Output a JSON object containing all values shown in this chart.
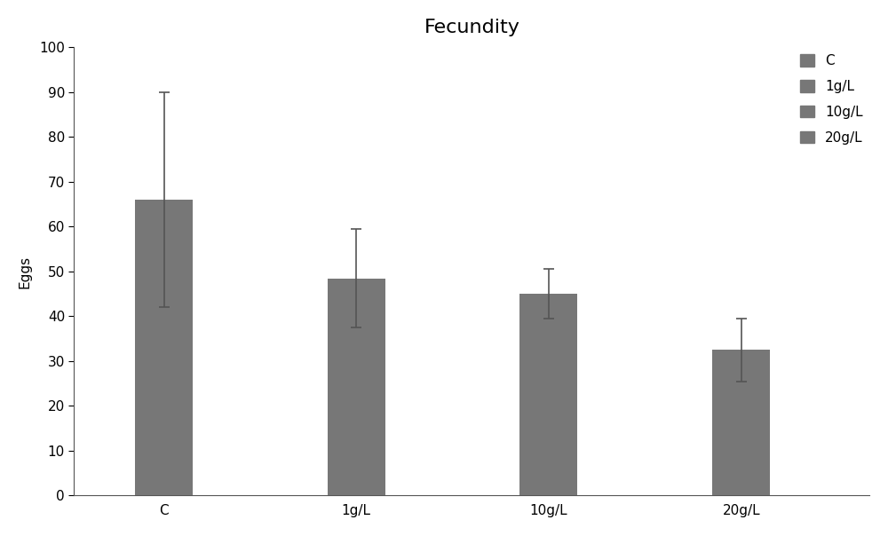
{
  "title": "Fecundity",
  "categories": [
    "C",
    "1g/L",
    "10g/L",
    "20g/L"
  ],
  "values": [
    66,
    48.5,
    45,
    32.5
  ],
  "errors": [
    24,
    11,
    5.5,
    7
  ],
  "bar_color": "#777777",
  "ylabel": "Eggs",
  "ylim": [
    0,
    100
  ],
  "yticks": [
    0,
    10,
    20,
    30,
    40,
    50,
    60,
    70,
    80,
    90,
    100
  ],
  "legend_labels": [
    "C",
    "1g/L",
    "10g/L",
    "20g/L"
  ],
  "title_fontsize": 16,
  "axis_fontsize": 11,
  "tick_fontsize": 11,
  "legend_fontsize": 11,
  "bar_width": 0.45,
  "background_color": "#ffffff",
  "x_positions": [
    0.5,
    2.0,
    3.5,
    5.0
  ]
}
